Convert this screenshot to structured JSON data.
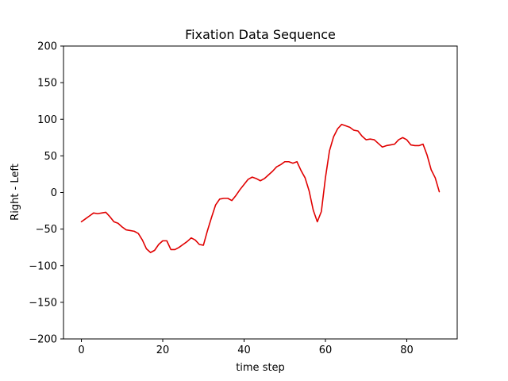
{
  "chart_data": {
    "type": "line",
    "title": "Fixation Data Sequence",
    "xlabel": "time step",
    "ylabel": "Right - Left",
    "xlim": [
      -4.4,
      92.4
    ],
    "ylim": [
      -200,
      200
    ],
    "xticks": [
      0,
      20,
      40,
      60,
      80
    ],
    "yticks": [
      -200,
      -150,
      -100,
      -50,
      0,
      50,
      100,
      150,
      200
    ],
    "grid": false,
    "series": [
      {
        "color": "#e00000",
        "x": [
          0,
          1,
          2,
          3,
          4,
          5,
          6,
          7,
          8,
          9,
          10,
          11,
          12,
          13,
          14,
          15,
          16,
          17,
          18,
          19,
          20,
          21,
          22,
          23,
          24,
          25,
          26,
          27,
          28,
          29,
          30,
          31,
          32,
          33,
          34,
          35,
          36,
          37,
          38,
          39,
          40,
          41,
          42,
          43,
          44,
          45,
          46,
          47,
          48,
          49,
          50,
          51,
          52,
          53,
          54,
          55,
          56,
          57,
          58,
          59,
          60,
          61,
          62,
          63,
          64,
          65,
          66,
          67,
          68,
          69,
          70,
          71,
          72,
          73,
          74,
          75,
          76,
          77,
          78,
          79,
          80,
          81,
          82,
          83,
          84,
          85,
          86,
          87,
          88
        ],
        "values": [
          -40,
          -36,
          -32,
          -28,
          -29,
          -28,
          -27,
          -33,
          -40,
          -42,
          -47,
          -51,
          -52,
          -53,
          -56,
          -65,
          -77,
          -82,
          -79,
          -71,
          -66,
          -66,
          -78,
          -78,
          -75,
          -71,
          -67,
          -62,
          -65,
          -71,
          -72,
          -52,
          -34,
          -17,
          -9,
          -8,
          -8,
          -11,
          -4,
          4,
          11,
          18,
          21,
          19,
          16,
          19,
          24,
          29,
          35,
          38,
          42,
          42,
          40,
          42,
          30,
          20,
          2,
          -24,
          -40,
          -26,
          20,
          57,
          76,
          87,
          93,
          91,
          89,
          85,
          84,
          77,
          72,
          73,
          72,
          67,
          62,
          64,
          65,
          66,
          72,
          75,
          72,
          65,
          64,
          64,
          66,
          51,
          31,
          20,
          1
        ]
      }
    ]
  }
}
